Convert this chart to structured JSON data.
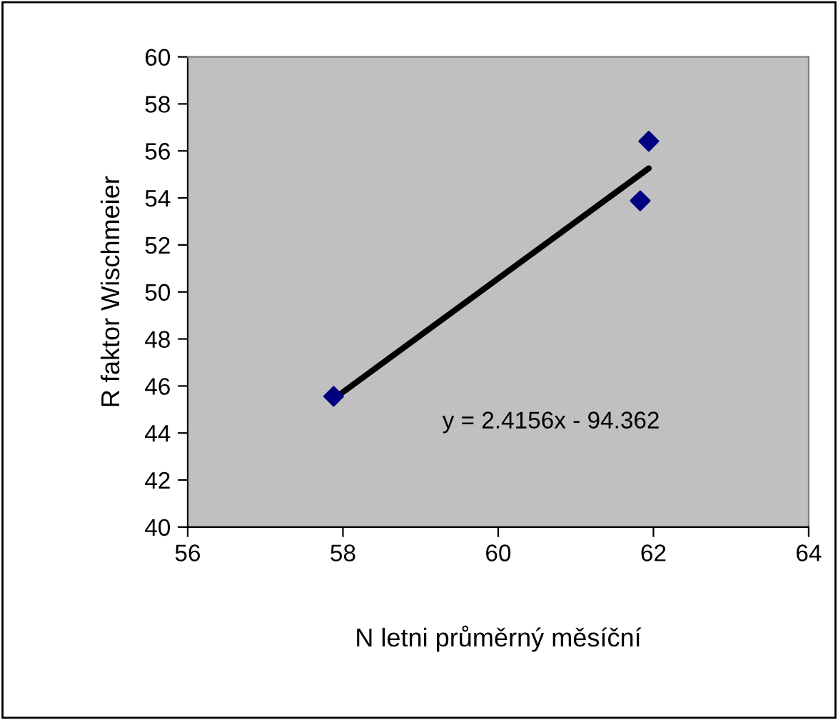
{
  "chart_data": {
    "type": "scatter",
    "xlabel": "N letni průměrný měsíční",
    "ylabel": "R faktor Wischmeier",
    "x": [
      57.88,
      61.83,
      61.94
    ],
    "series": [
      {
        "color": "#000080",
        "marker": "diamond",
        "values": [
          45.56,
          53.88,
          56.41
        ]
      },
      {
        "type": "line",
        "color": "#000000",
        "x": [
          57.88,
          61.94
        ],
        "values": [
          45.45,
          55.26
        ],
        "marker": "none"
      }
    ],
    "annotations": [
      "y = 2.4156x - 94.362"
    ],
    "xlim": [
      56,
      64
    ],
    "xticks": [
      56,
      58,
      60,
      62,
      64
    ],
    "ylim": [
      40,
      60
    ],
    "yticks": [
      40,
      42,
      44,
      46,
      48,
      50,
      52,
      54,
      56,
      58,
      60
    ],
    "grid": false,
    "legend": false
  }
}
